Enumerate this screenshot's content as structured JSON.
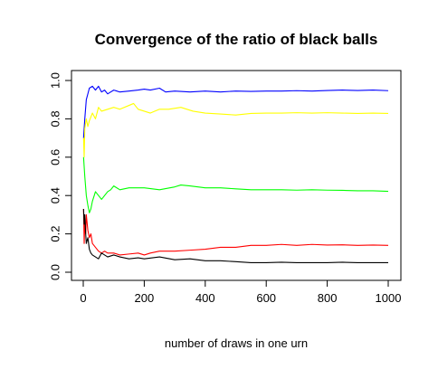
{
  "chart_data": {
    "type": "line",
    "title": "Convergence of the ratio of black balls",
    "xlabel": "number of draws in one urn",
    "ylabel": "",
    "xlim": [
      0,
      1000
    ],
    "ylim": [
      0.0,
      1.0
    ],
    "xticks": [
      "0",
      "200",
      "400",
      "600",
      "800",
      "1000"
    ],
    "yticks": [
      "0.0",
      "0.2",
      "0.4",
      "0.6",
      "0.8",
      "1.0"
    ],
    "grid": false,
    "legend": "none",
    "series": [
      {
        "color": "#0000ff",
        "points": [
          [
            1,
            0.7
          ],
          [
            5,
            0.8
          ],
          [
            10,
            0.9
          ],
          [
            15,
            0.93
          ],
          [
            20,
            0.96
          ],
          [
            30,
            0.97
          ],
          [
            40,
            0.95
          ],
          [
            50,
            0.97
          ],
          [
            60,
            0.94
          ],
          [
            70,
            0.95
          ],
          [
            80,
            0.93
          ],
          [
            90,
            0.94
          ],
          [
            100,
            0.95
          ],
          [
            120,
            0.94
          ],
          [
            150,
            0.945
          ],
          [
            180,
            0.95
          ],
          [
            200,
            0.955
          ],
          [
            220,
            0.95
          ],
          [
            250,
            0.96
          ],
          [
            270,
            0.94
          ],
          [
            300,
            0.945
          ],
          [
            350,
            0.94
          ],
          [
            400,
            0.945
          ],
          [
            450,
            0.94
          ],
          [
            500,
            0.945
          ],
          [
            550,
            0.943
          ],
          [
            600,
            0.945
          ],
          [
            650,
            0.945
          ],
          [
            700,
            0.947
          ],
          [
            750,
            0.945
          ],
          [
            800,
            0.948
          ],
          [
            850,
            0.95
          ],
          [
            900,
            0.948
          ],
          [
            950,
            0.95
          ],
          [
            1000,
            0.947
          ]
        ]
      },
      {
        "color": "#ffff00",
        "points": [
          [
            1,
            0.7
          ],
          [
            3,
            0.6
          ],
          [
            5,
            0.75
          ],
          [
            10,
            0.8
          ],
          [
            15,
            0.76
          ],
          [
            20,
            0.79
          ],
          [
            30,
            0.83
          ],
          [
            40,
            0.8
          ],
          [
            50,
            0.86
          ],
          [
            60,
            0.84
          ],
          [
            80,
            0.85
          ],
          [
            100,
            0.86
          ],
          [
            120,
            0.85
          ],
          [
            150,
            0.87
          ],
          [
            165,
            0.88
          ],
          [
            180,
            0.85
          ],
          [
            200,
            0.84
          ],
          [
            220,
            0.83
          ],
          [
            250,
            0.85
          ],
          [
            280,
            0.85
          ],
          [
            320,
            0.86
          ],
          [
            360,
            0.84
          ],
          [
            400,
            0.83
          ],
          [
            450,
            0.825
          ],
          [
            500,
            0.82
          ],
          [
            550,
            0.828
          ],
          [
            600,
            0.83
          ],
          [
            650,
            0.83
          ],
          [
            700,
            0.832
          ],
          [
            750,
            0.83
          ],
          [
            800,
            0.832
          ],
          [
            850,
            0.83
          ],
          [
            900,
            0.828
          ],
          [
            950,
            0.83
          ],
          [
            1000,
            0.828
          ]
        ]
      },
      {
        "color": "#00ff00",
        "points": [
          [
            1,
            0.6
          ],
          [
            5,
            0.5
          ],
          [
            10,
            0.4
          ],
          [
            15,
            0.35
          ],
          [
            20,
            0.31
          ],
          [
            25,
            0.33
          ],
          [
            30,
            0.37
          ],
          [
            40,
            0.42
          ],
          [
            50,
            0.4
          ],
          [
            60,
            0.38
          ],
          [
            70,
            0.4
          ],
          [
            80,
            0.42
          ],
          [
            90,
            0.43
          ],
          [
            100,
            0.45
          ],
          [
            120,
            0.43
          ],
          [
            150,
            0.44
          ],
          [
            180,
            0.44
          ],
          [
            200,
            0.44
          ],
          [
            250,
            0.43
          ],
          [
            300,
            0.445
          ],
          [
            320,
            0.455
          ],
          [
            350,
            0.45
          ],
          [
            400,
            0.44
          ],
          [
            450,
            0.44
          ],
          [
            500,
            0.435
          ],
          [
            550,
            0.43
          ],
          [
            600,
            0.43
          ],
          [
            650,
            0.43
          ],
          [
            700,
            0.428
          ],
          [
            750,
            0.43
          ],
          [
            800,
            0.428
          ],
          [
            850,
            0.427
          ],
          [
            900,
            0.425
          ],
          [
            950,
            0.425
          ],
          [
            1000,
            0.422
          ]
        ]
      },
      {
        "color": "#ff0000",
        "points": [
          [
            1,
            0.33
          ],
          [
            3,
            0.15
          ],
          [
            5,
            0.25
          ],
          [
            8,
            0.2
          ],
          [
            10,
            0.3
          ],
          [
            15,
            0.22
          ],
          [
            20,
            0.18
          ],
          [
            25,
            0.2
          ],
          [
            30,
            0.15
          ],
          [
            40,
            0.13
          ],
          [
            50,
            0.11
          ],
          [
            60,
            0.1
          ],
          [
            70,
            0.11
          ],
          [
            80,
            0.1
          ],
          [
            100,
            0.1
          ],
          [
            120,
            0.09
          ],
          [
            150,
            0.095
          ],
          [
            180,
            0.1
          ],
          [
            200,
            0.09
          ],
          [
            220,
            0.1
          ],
          [
            250,
            0.11
          ],
          [
            300,
            0.11
          ],
          [
            350,
            0.115
          ],
          [
            400,
            0.12
          ],
          [
            450,
            0.13
          ],
          [
            500,
            0.13
          ],
          [
            550,
            0.14
          ],
          [
            600,
            0.14
          ],
          [
            650,
            0.145
          ],
          [
            700,
            0.14
          ],
          [
            750,
            0.145
          ],
          [
            800,
            0.142
          ],
          [
            850,
            0.143
          ],
          [
            900,
            0.14
          ],
          [
            950,
            0.142
          ],
          [
            1000,
            0.14
          ]
        ]
      },
      {
        "color": "#000000",
        "points": [
          [
            1,
            0.33
          ],
          [
            3,
            0.25
          ],
          [
            5,
            0.3
          ],
          [
            8,
            0.2
          ],
          [
            10,
            0.15
          ],
          [
            15,
            0.18
          ],
          [
            20,
            0.12
          ],
          [
            25,
            0.1
          ],
          [
            30,
            0.09
          ],
          [
            40,
            0.08
          ],
          [
            50,
            0.07
          ],
          [
            60,
            0.1
          ],
          [
            80,
            0.08
          ],
          [
            100,
            0.09
          ],
          [
            120,
            0.08
          ],
          [
            150,
            0.07
          ],
          [
            180,
            0.075
          ],
          [
            200,
            0.07
          ],
          [
            250,
            0.08
          ],
          [
            300,
            0.065
          ],
          [
            350,
            0.07
          ],
          [
            400,
            0.06
          ],
          [
            450,
            0.06
          ],
          [
            500,
            0.055
          ],
          [
            550,
            0.05
          ],
          [
            600,
            0.05
          ],
          [
            650,
            0.052
          ],
          [
            700,
            0.05
          ],
          [
            750,
            0.05
          ],
          [
            800,
            0.05
          ],
          [
            850,
            0.052
          ],
          [
            900,
            0.05
          ],
          [
            950,
            0.05
          ],
          [
            1000,
            0.05
          ]
        ]
      }
    ]
  }
}
